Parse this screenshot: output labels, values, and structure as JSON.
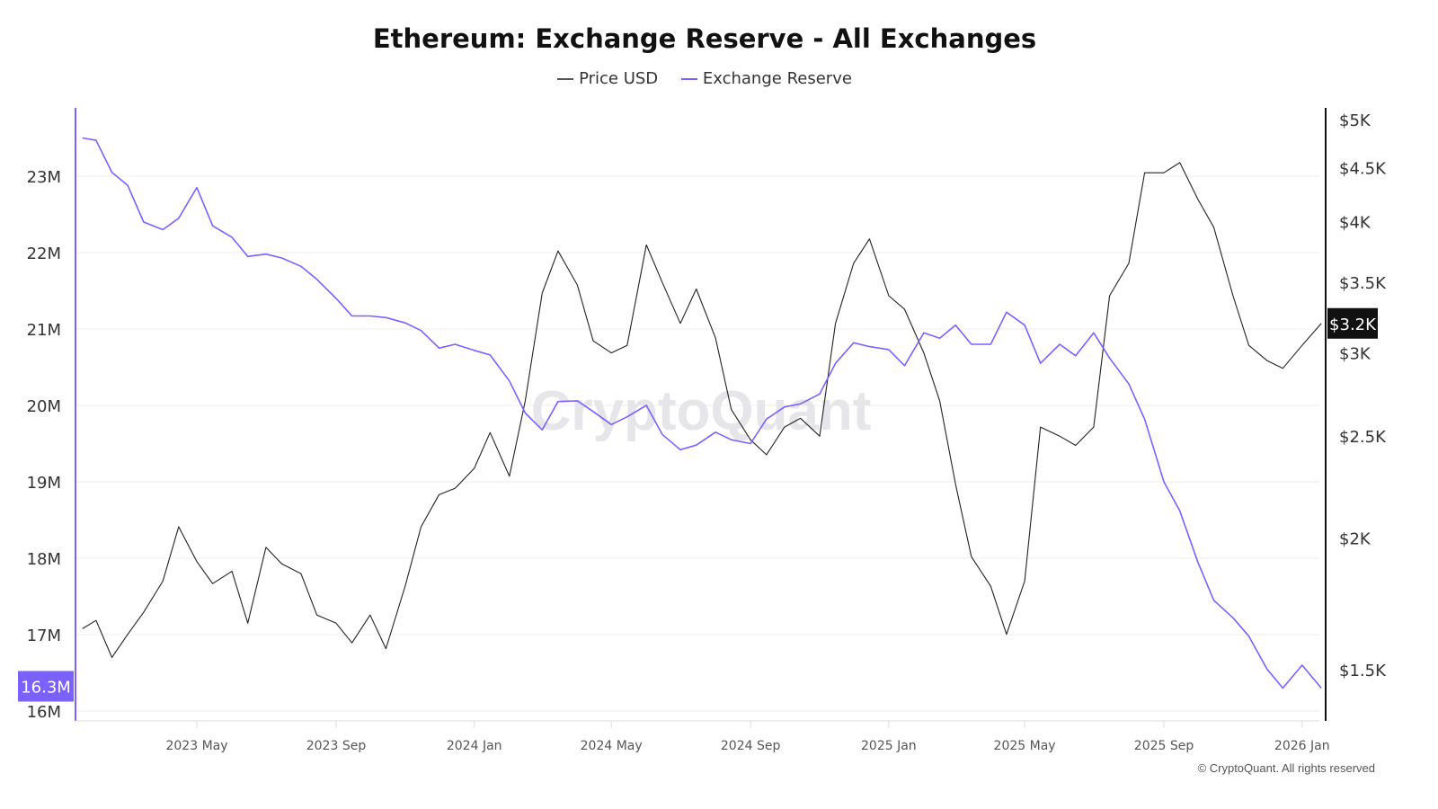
{
  "chart_data": {
    "type": "line",
    "title": "Ethereum: Exchange Reserve - All Exchanges",
    "legend": {
      "placement": "top-center",
      "entries": [
        "Price USD",
        "Exchange Reserve"
      ]
    },
    "grid": true,
    "x_ticks": [
      "2023 May",
      "2023 Sep",
      "2024 Jan",
      "2024 May",
      "2024 Sep",
      "2025 Jan",
      "2025 May",
      "2025 Sep",
      "2026 Jan"
    ],
    "x_tick_dates": [
      "2023-05-01",
      "2023-09-01",
      "2024-01-01",
      "2024-05-01",
      "2024-09-01",
      "2025-01-01",
      "2025-05-01",
      "2025-09-01",
      "2026-01-01"
    ],
    "left_axis": {
      "scale": "linear",
      "ticks": [
        "16M",
        "17M",
        "18M",
        "19M",
        "20M",
        "21M",
        "22M",
        "23M"
      ],
      "tick_values": [
        16,
        17,
        18,
        19,
        20,
        21,
        22,
        23
      ],
      "unit": "M",
      "current_label": "16.3M",
      "color": "#7b61ff"
    },
    "right_axis": {
      "scale": "log",
      "ticks": [
        "$1.5K",
        "$2K",
        "$2.5K",
        "$3K",
        "$3.5K",
        "$4K",
        "$4.5K",
        "$5K"
      ],
      "tick_values": [
        1500,
        2000,
        2500,
        3000,
        3500,
        4000,
        4500,
        5000
      ],
      "current_label": "$3.2K",
      "color": "#111111"
    },
    "dates": [
      "2023-01-20",
      "2023-02-01",
      "2023-02-15",
      "2023-03-01",
      "2023-03-15",
      "2023-04-01",
      "2023-04-15",
      "2023-05-01",
      "2023-05-15",
      "2023-06-01",
      "2023-06-15",
      "2023-07-01",
      "2023-07-15",
      "2023-08-01",
      "2023-08-15",
      "2023-09-01",
      "2023-09-15",
      "2023-10-01",
      "2023-10-15",
      "2023-11-01",
      "2023-11-15",
      "2023-12-01",
      "2023-12-15",
      "2024-01-01",
      "2024-01-15",
      "2024-02-01",
      "2024-02-15",
      "2024-03-01",
      "2024-03-15",
      "2024-04-01",
      "2024-04-15",
      "2024-05-01",
      "2024-05-15",
      "2024-06-01",
      "2024-06-15",
      "2024-07-01",
      "2024-07-15",
      "2024-08-01",
      "2024-08-15",
      "2024-09-01",
      "2024-09-15",
      "2024-10-01",
      "2024-10-15",
      "2024-11-01",
      "2024-11-15",
      "2024-12-01",
      "2024-12-15",
      "2025-01-01",
      "2025-01-15",
      "2025-02-01",
      "2025-02-15",
      "2025-03-01",
      "2025-03-15",
      "2025-04-01",
      "2025-04-15",
      "2025-05-01",
      "2025-05-15",
      "2025-06-01",
      "2025-06-15",
      "2025-07-01",
      "2025-07-15",
      "2025-08-01",
      "2025-08-15",
      "2025-09-01",
      "2025-09-15",
      "2025-10-01",
      "2025-10-15",
      "2025-11-01",
      "2025-11-15",
      "2025-12-01",
      "2025-12-15",
      "2026-01-01",
      "2026-01-18"
    ],
    "series": [
      {
        "name": "Price USD",
        "axis": "right",
        "color": "#222222",
        "values": [
          1640,
          1670,
          1540,
          1620,
          1700,
          1820,
          2050,
          1900,
          1810,
          1860,
          1660,
          1960,
          1890,
          1850,
          1690,
          1660,
          1590,
          1690,
          1570,
          1800,
          2050,
          2200,
          2230,
          2330,
          2520,
          2290,
          2700,
          3420,
          3750,
          3480,
          3080,
          3000,
          3050,
          3800,
          3500,
          3200,
          3450,
          3100,
          2650,
          2480,
          2400,
          2550,
          2600,
          2500,
          3200,
          3650,
          3850,
          3400,
          3300,
          3000,
          2700,
          2250,
          1920,
          1800,
          1620,
          1820,
          2550,
          2500,
          2450,
          2550,
          3400,
          3650,
          4450,
          4450,
          4550,
          4200,
          3950,
          3400,
          3050,
          2950,
          2900,
          3050,
          3200
        ]
      },
      {
        "name": "Exchange Reserve",
        "axis": "left",
        "color": "#7b61ff",
        "values": [
          23.5,
          23.47,
          23.05,
          22.88,
          22.4,
          22.3,
          22.45,
          22.85,
          22.35,
          22.2,
          21.95,
          21.98,
          21.93,
          21.82,
          21.65,
          21.4,
          21.17,
          21.17,
          21.15,
          21.08,
          20.98,
          20.75,
          20.8,
          20.72,
          20.66,
          20.32,
          19.9,
          19.68,
          20.05,
          20.06,
          19.92,
          19.75,
          19.85,
          20.0,
          19.62,
          19.42,
          19.48,
          19.65,
          19.55,
          19.5,
          19.82,
          19.98,
          20.02,
          20.15,
          20.55,
          20.82,
          20.77,
          20.73,
          20.52,
          20.95,
          20.88,
          21.05,
          20.8,
          20.8,
          21.22,
          21.05,
          20.55,
          20.8,
          20.65,
          20.95,
          20.62,
          20.28,
          19.82,
          19.0,
          18.62,
          17.95,
          17.45,
          17.22,
          16.98,
          16.55,
          16.3,
          16.6,
          16.3
        ]
      }
    ]
  },
  "watermark": "CryptoQuant",
  "footer": "© CryptoQuant. All rights reserved"
}
